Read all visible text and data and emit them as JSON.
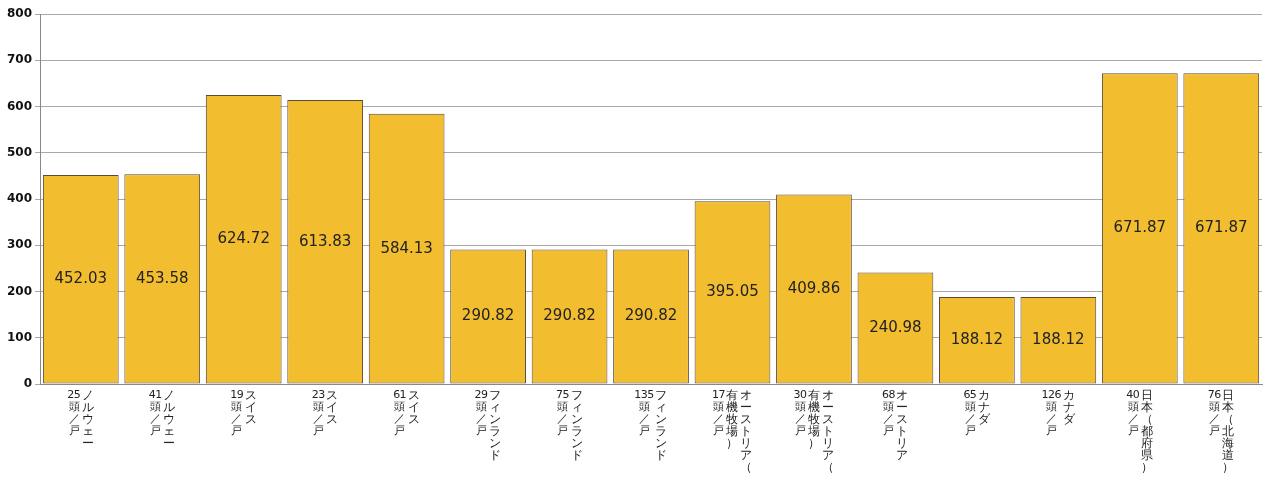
{
  "chart_data": {
    "type": "bar",
    "categories": [
      "ノルウェー\n25頭／戸",
      "ノルウェー\n41頭／戸",
      "スイス\n19頭／戸",
      "スイス\n23頭／戸",
      "スイス\n61頭／戸",
      "フィンランド\n29頭／戸",
      "フィンランド\n75頭／戸",
      "フィンランド\n135頭／戸",
      "オーストリア（有機牧場）\n17頭／戸",
      "オーストリア（有機牧場）\n30頭／戸",
      "オーストリア\n68頭／戸",
      "カナダ\n65頭／戸",
      "カナダ\n126頭／戸",
      "日本（都府県）\n40頭／戸",
      "日本（北海道）\n76頭／戸"
    ],
    "values": [
      452.03,
      453.58,
      624.72,
      613.83,
      584.13,
      290.82,
      290.82,
      290.82,
      395.05,
      409.86,
      240.98,
      188.12,
      188.12,
      671.87,
      671.87
    ],
    "color": "#f2bd2f",
    "ylim": [
      0,
      800
    ],
    "yticks": [
      0,
      100,
      200,
      300,
      400,
      500,
      600,
      700,
      800
    ],
    "grid": "y",
    "data_labels": true,
    "legend": false
  }
}
